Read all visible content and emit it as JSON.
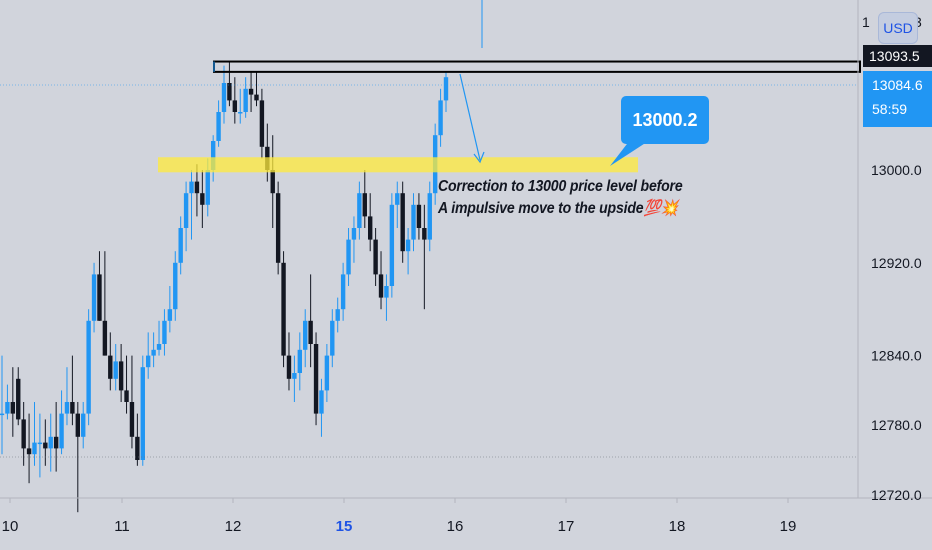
{
  "chart_data": {
    "type": "candlestick",
    "x_ticks": [
      "10",
      "11",
      "12",
      "15",
      "16",
      "17",
      "18",
      "19"
    ],
    "x_tick_bold": [
      "15"
    ],
    "y_ticks": [
      13000.0,
      12920.0,
      12840.0,
      12780.0,
      12720.0
    ],
    "y_tick_labels": [
      "13000.0",
      "12920.0",
      "12840.0",
      "12780.0",
      "12720.0"
    ],
    "ylim": [
      12690,
      13130
    ],
    "grid": false,
    "resistance_level_1": 13093.5,
    "resistance_level_2": 13084.6,
    "support_zone": [
      12998,
      13011
    ],
    "target_level": 13000.2,
    "candles": [
      {
        "o": 12790,
        "h": 12840,
        "l": 12755,
        "c": 12790
      },
      {
        "o": 12790,
        "h": 12815,
        "l": 12785,
        "c": 12800
      },
      {
        "o": 12800,
        "h": 12830,
        "l": 12770,
        "c": 12790
      },
      {
        "o": 12820,
        "h": 12830,
        "l": 12780,
        "c": 12785
      },
      {
        "o": 12785,
        "h": 12800,
        "l": 12745,
        "c": 12760
      },
      {
        "o": 12760,
        "h": 12790,
        "l": 12730,
        "c": 12755
      },
      {
        "o": 12755,
        "h": 12800,
        "l": 12745,
        "c": 12765
      },
      {
        "o": 12765,
        "h": 12790,
        "l": 12735,
        "c": 12765
      },
      {
        "o": 12765,
        "h": 12785,
        "l": 12745,
        "c": 12760
      },
      {
        "o": 12760,
        "h": 12790,
        "l": 12740,
        "c": 12770
      },
      {
        "o": 12770,
        "h": 12800,
        "l": 12740,
        "c": 12760
      },
      {
        "o": 12760,
        "h": 12810,
        "l": 12755,
        "c": 12790
      },
      {
        "o": 12790,
        "h": 12830,
        "l": 12780,
        "c": 12800
      },
      {
        "o": 12800,
        "h": 12840,
        "l": 12780,
        "c": 12790
      },
      {
        "o": 12790,
        "h": 12800,
        "l": 12705,
        "c": 12770
      },
      {
        "o": 12770,
        "h": 12800,
        "l": 12760,
        "c": 12790
      },
      {
        "o": 12790,
        "h": 12880,
        "l": 12780,
        "c": 12870
      },
      {
        "o": 12870,
        "h": 12920,
        "l": 12860,
        "c": 12910
      },
      {
        "o": 12910,
        "h": 12930,
        "l": 12870,
        "c": 12870
      },
      {
        "o": 12870,
        "h": 12930,
        "l": 12840,
        "c": 12840
      },
      {
        "o": 12840,
        "h": 12860,
        "l": 12810,
        "c": 12820
      },
      {
        "o": 12820,
        "h": 12850,
        "l": 12810,
        "c": 12835
      },
      {
        "o": 12835,
        "h": 12850,
        "l": 12800,
        "c": 12810
      },
      {
        "o": 12810,
        "h": 12840,
        "l": 12790,
        "c": 12800
      },
      {
        "o": 12800,
        "h": 12840,
        "l": 12760,
        "c": 12770
      },
      {
        "o": 12770,
        "h": 12790,
        "l": 12745,
        "c": 12750
      },
      {
        "o": 12750,
        "h": 12840,
        "l": 12745,
        "c": 12830
      },
      {
        "o": 12830,
        "h": 12860,
        "l": 12820,
        "c": 12840
      },
      {
        "o": 12840,
        "h": 12860,
        "l": 12830,
        "c": 12845
      },
      {
        "o": 12845,
        "h": 12870,
        "l": 12840,
        "c": 12850
      },
      {
        "o": 12850,
        "h": 12880,
        "l": 12840,
        "c": 12870
      },
      {
        "o": 12870,
        "h": 12900,
        "l": 12860,
        "c": 12880
      },
      {
        "o": 12880,
        "h": 12930,
        "l": 12870,
        "c": 12920
      },
      {
        "o": 12920,
        "h": 12960,
        "l": 12910,
        "c": 12950
      },
      {
        "o": 12950,
        "h": 12990,
        "l": 12930,
        "c": 12980
      },
      {
        "o": 12980,
        "h": 13000,
        "l": 12940,
        "c": 12990
      },
      {
        "o": 12990,
        "h": 13005,
        "l": 12960,
        "c": 12980
      },
      {
        "o": 12980,
        "h": 13000,
        "l": 12950,
        "c": 12970
      },
      {
        "o": 12970,
        "h": 13010,
        "l": 12960,
        "c": 13000
      },
      {
        "o": 13000,
        "h": 13030,
        "l": 12990,
        "c": 13025
      },
      {
        "o": 13025,
        "h": 13060,
        "l": 13020,
        "c": 13050
      },
      {
        "o": 13050,
        "h": 13090,
        "l": 13040,
        "c": 13075
      },
      {
        "o": 13075,
        "h": 13093,
        "l": 13055,
        "c": 13060
      },
      {
        "o": 13060,
        "h": 13080,
        "l": 13040,
        "c": 13050
      },
      {
        "o": 13050,
        "h": 13070,
        "l": 13040,
        "c": 13050
      },
      {
        "o": 13050,
        "h": 13080,
        "l": 13045,
        "c": 13070
      },
      {
        "o": 13070,
        "h": 13085,
        "l": 13050,
        "c": 13065
      },
      {
        "o": 13065,
        "h": 13085,
        "l": 13055,
        "c": 13060
      },
      {
        "o": 13060,
        "h": 13070,
        "l": 13010,
        "c": 13020
      },
      {
        "o": 13020,
        "h": 13040,
        "l": 12990,
        "c": 13000
      },
      {
        "o": 13000,
        "h": 13030,
        "l": 12950,
        "c": 12980
      },
      {
        "o": 12980,
        "h": 12990,
        "l": 12910,
        "c": 12920
      },
      {
        "o": 12920,
        "h": 12930,
        "l": 12830,
        "c": 12840
      },
      {
        "o": 12840,
        "h": 12860,
        "l": 12810,
        "c": 12820
      },
      {
        "o": 12820,
        "h": 12840,
        "l": 12800,
        "c": 12825
      },
      {
        "o": 12825,
        "h": 12860,
        "l": 12810,
        "c": 12845
      },
      {
        "o": 12845,
        "h": 12880,
        "l": 12830,
        "c": 12870
      },
      {
        "o": 12870,
        "h": 12910,
        "l": 12830,
        "c": 12850
      },
      {
        "o": 12850,
        "h": 12860,
        "l": 12780,
        "c": 12790
      },
      {
        "o": 12790,
        "h": 12820,
        "l": 12770,
        "c": 12810
      },
      {
        "o": 12810,
        "h": 12850,
        "l": 12800,
        "c": 12840
      },
      {
        "o": 12840,
        "h": 12880,
        "l": 12830,
        "c": 12870
      },
      {
        "o": 12870,
        "h": 12890,
        "l": 12860,
        "c": 12880
      },
      {
        "o": 12880,
        "h": 12920,
        "l": 12870,
        "c": 12910
      },
      {
        "o": 12910,
        "h": 12950,
        "l": 12900,
        "c": 12940
      },
      {
        "o": 12940,
        "h": 12960,
        "l": 12920,
        "c": 12950
      },
      {
        "o": 12950,
        "h": 12990,
        "l": 12940,
        "c": 12980
      },
      {
        "o": 12980,
        "h": 13000,
        "l": 12950,
        "c": 12960
      },
      {
        "o": 12960,
        "h": 12980,
        "l": 12930,
        "c": 12940
      },
      {
        "o": 12940,
        "h": 12950,
        "l": 12900,
        "c": 12910
      },
      {
        "o": 12910,
        "h": 12930,
        "l": 12880,
        "c": 12890
      },
      {
        "o": 12890,
        "h": 12910,
        "l": 12870,
        "c": 12900
      },
      {
        "o": 12900,
        "h": 12980,
        "l": 12890,
        "c": 12970
      },
      {
        "o": 12970,
        "h": 12990,
        "l": 12950,
        "c": 12980
      },
      {
        "o": 12980,
        "h": 12990,
        "l": 12920,
        "c": 12930
      },
      {
        "o": 12930,
        "h": 12950,
        "l": 12910,
        "c": 12940
      },
      {
        "o": 12940,
        "h": 12980,
        "l": 12930,
        "c": 12970
      },
      {
        "o": 12970,
        "h": 12980,
        "l": 12940,
        "c": 12950
      },
      {
        "o": 12950,
        "h": 12970,
        "l": 12880,
        "c": 12940
      },
      {
        "o": 12940,
        "h": 12990,
        "l": 12930,
        "c": 12980
      },
      {
        "o": 12980,
        "h": 13040,
        "l": 12970,
        "c": 13030
      },
      {
        "o": 13030,
        "h": 13070,
        "l": 13020,
        "c": 13060
      },
      {
        "o": 13060,
        "h": 13084,
        "l": 13050,
        "c": 13080
      }
    ]
  },
  "annotation": {
    "line1": "Correction to 13000 price level before",
    "line2": "A impulsive move to the upside💯💥"
  },
  "callout_label": "13000.2",
  "price_axis": {
    "currency": "USD",
    "top_partial": "1",
    "top_partial_right": "3",
    "level_black": "13093.5",
    "level_blue": "13084.6",
    "countdown": "58:59"
  },
  "colors": {
    "background": "#d1d4dc",
    "bull": "#2196f3",
    "bear": "#131722",
    "zone": "#ffeb3b",
    "level_line": "#000000",
    "accent": "#2196f3"
  }
}
